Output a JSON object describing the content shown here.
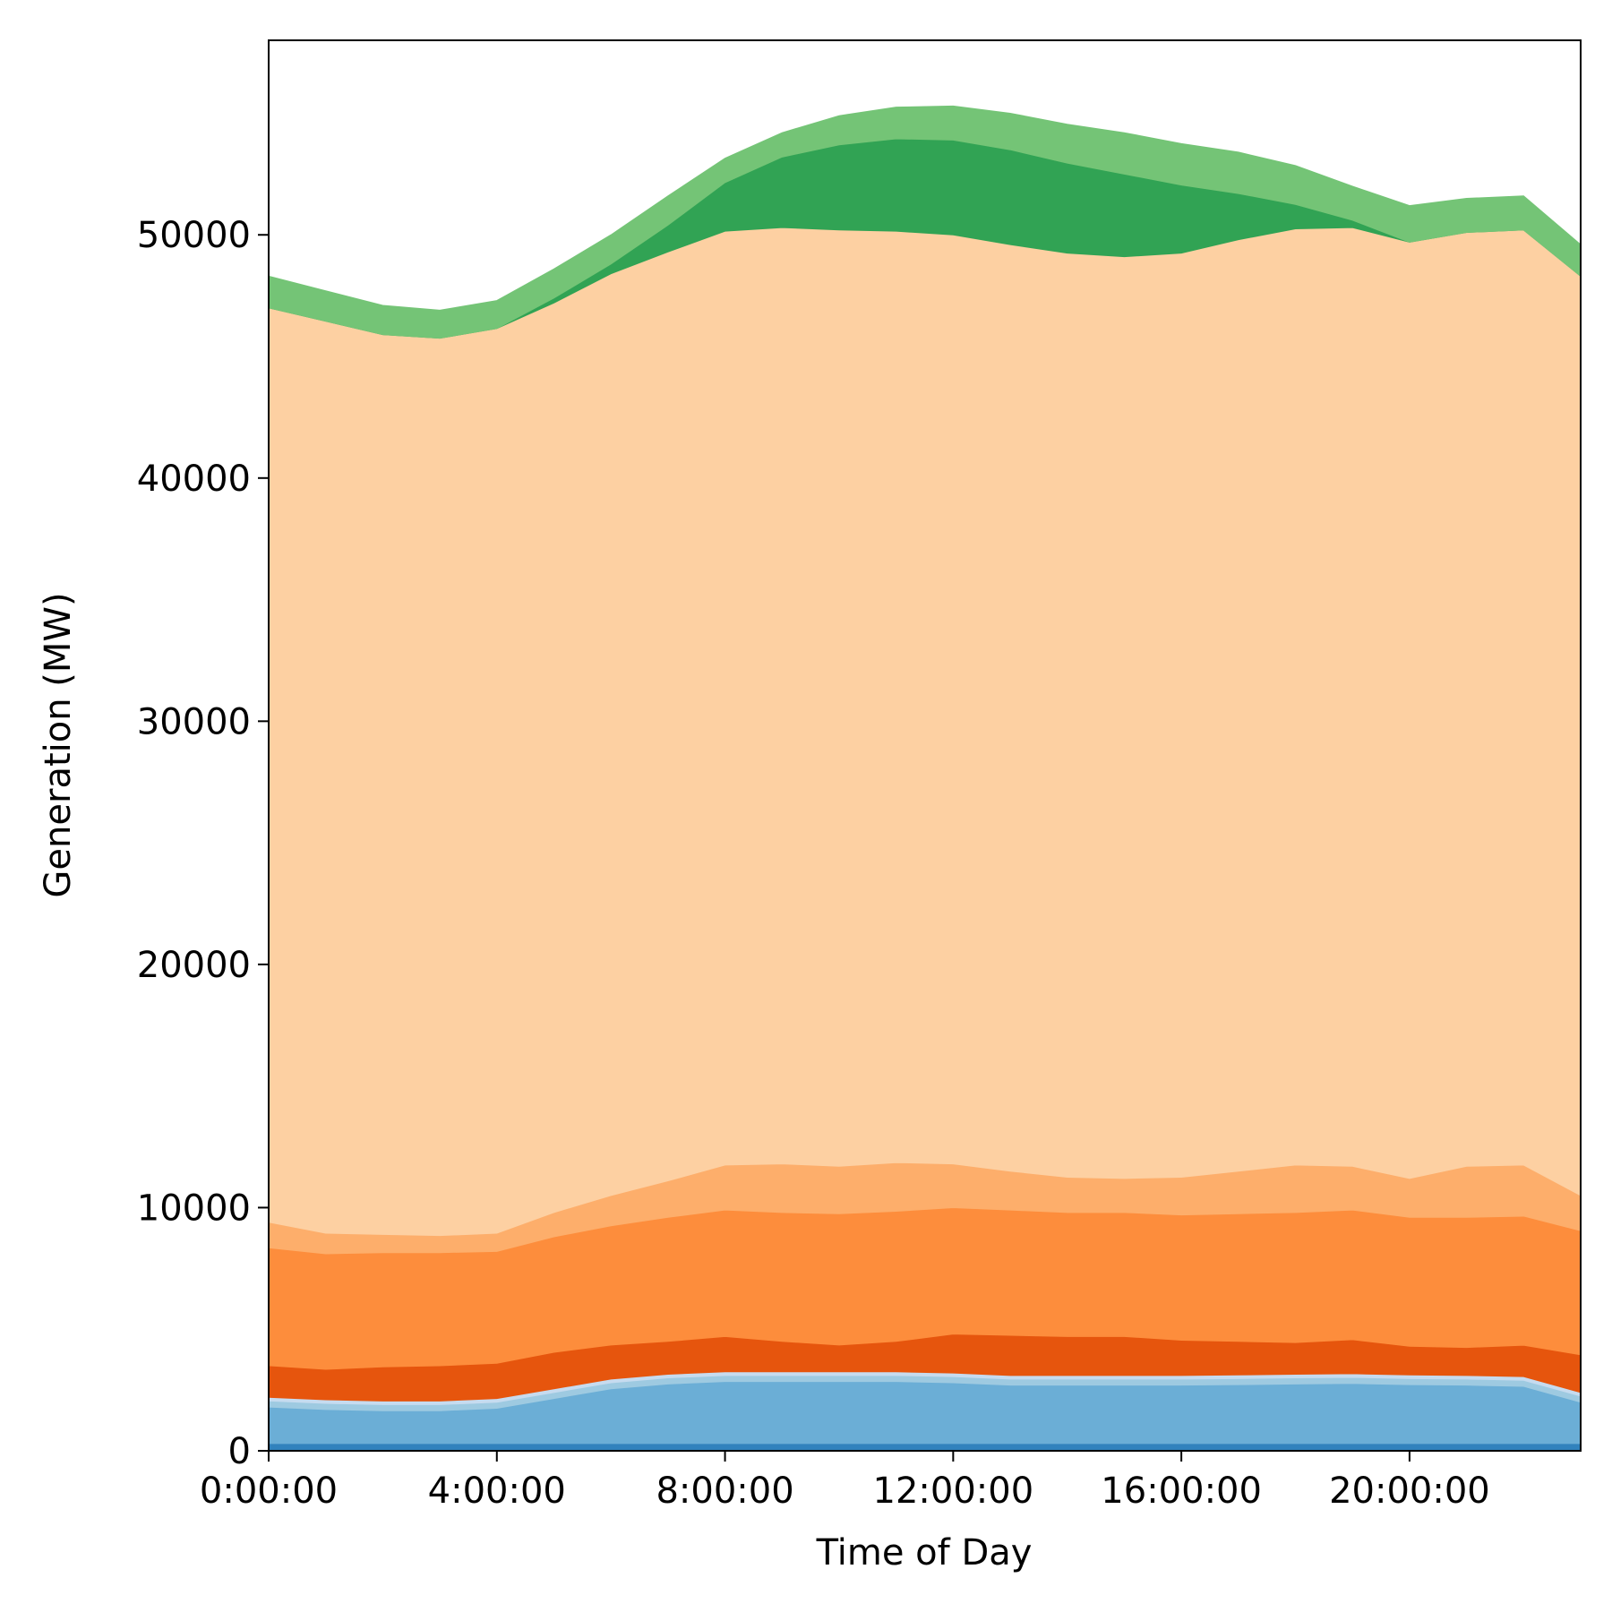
{
  "chart_data": {
    "type": "area",
    "stacked": true,
    "xlabel": "Time of Day",
    "ylabel": "Generation (MW)",
    "xlim": [
      0,
      23
    ],
    "ylim": [
      0,
      58000
    ],
    "x_tick_values": [
      0,
      4,
      8,
      12,
      16,
      20
    ],
    "x_tick_labels": [
      "0:00:00",
      "4:00:00",
      "8:00:00",
      "12:00:00",
      "16:00:00",
      "20:00:00"
    ],
    "y_ticks": [
      0,
      10000,
      20000,
      30000,
      40000,
      50000
    ],
    "grid": false,
    "legend": "none",
    "x": [
      0,
      1,
      2,
      3,
      4,
      5,
      6,
      7,
      8,
      9,
      10,
      11,
      12,
      13,
      14,
      15,
      16,
      17,
      18,
      19,
      20,
      21,
      22,
      23
    ],
    "series": [
      {
        "color": "#3182bd",
        "values": [
          300,
          300,
          300,
          300,
          300,
          300,
          300,
          300,
          300,
          300,
          300,
          300,
          300,
          300,
          300,
          300,
          300,
          300,
          300,
          300,
          300,
          300,
          300,
          300
        ]
      },
      {
        "color": "#6baed6",
        "values": [
          1500,
          1400,
          1350,
          1350,
          1450,
          1850,
          2250,
          2450,
          2550,
          2550,
          2550,
          2550,
          2500,
          2400,
          2400,
          2400,
          2400,
          2420,
          2450,
          2470,
          2420,
          2400,
          2350,
          1700
        ]
      },
      {
        "color": "#9ecae1",
        "values": [
          250,
          250,
          250,
          250,
          250,
          250,
          250,
          250,
          250,
          250,
          250,
          250,
          250,
          250,
          250,
          250,
          250,
          250,
          250,
          250,
          250,
          250,
          250,
          250
        ]
      },
      {
        "color": "#c6dbef",
        "values": [
          150,
          150,
          150,
          150,
          150,
          150,
          150,
          150,
          150,
          150,
          150,
          150,
          150,
          150,
          150,
          150,
          150,
          150,
          150,
          150,
          150,
          150,
          150,
          150
        ]
      },
      {
        "color": "#e6550d",
        "values": [
          1300,
          1250,
          1400,
          1450,
          1450,
          1500,
          1400,
          1350,
          1450,
          1250,
          1100,
          1250,
          1600,
          1650,
          1600,
          1600,
          1450,
          1380,
          1300,
          1400,
          1180,
          1150,
          1290,
          1550
        ]
      },
      {
        "color": "#fd8d3c",
        "values": [
          4850,
          4750,
          4700,
          4650,
          4600,
          4750,
          4900,
          5100,
          5200,
          5300,
          5400,
          5350,
          5200,
          5150,
          5100,
          5100,
          5150,
          5250,
          5350,
          5330,
          5300,
          5350,
          5310,
          5100
        ]
      },
      {
        "color": "#fdae6b",
        "values": [
          1050,
          850,
          750,
          700,
          750,
          1000,
          1250,
          1500,
          1850,
          2000,
          1950,
          2000,
          1800,
          1600,
          1450,
          1400,
          1550,
          1750,
          1950,
          1800,
          1600,
          2100,
          2100,
          1450
        ]
      },
      {
        "color": "#fdd0a2",
        "values": [
          37600,
          37500,
          37000,
          36900,
          37200,
          37400,
          37900,
          38200,
          38400,
          38500,
          38500,
          38300,
          38200,
          38100,
          38000,
          37900,
          38000,
          38300,
          38500,
          38600,
          38500,
          38400,
          38450,
          37800
        ]
      },
      {
        "color": "#31a354",
        "values": [
          0,
          0,
          0,
          0,
          0,
          200,
          400,
          1100,
          2000,
          2900,
          3500,
          3800,
          3900,
          3900,
          3700,
          3400,
          2800,
          1900,
          1000,
          300,
          0,
          0,
          0,
          0
        ]
      },
      {
        "color": "#74c476",
        "values": [
          1300,
          1250,
          1200,
          1150,
          1150,
          1200,
          1200,
          1200,
          1000,
          1000,
          1200,
          1300,
          1400,
          1500,
          1600,
          1700,
          1700,
          1700,
          1600,
          1400,
          1500,
          1400,
          1400,
          1300
        ]
      }
    ]
  }
}
